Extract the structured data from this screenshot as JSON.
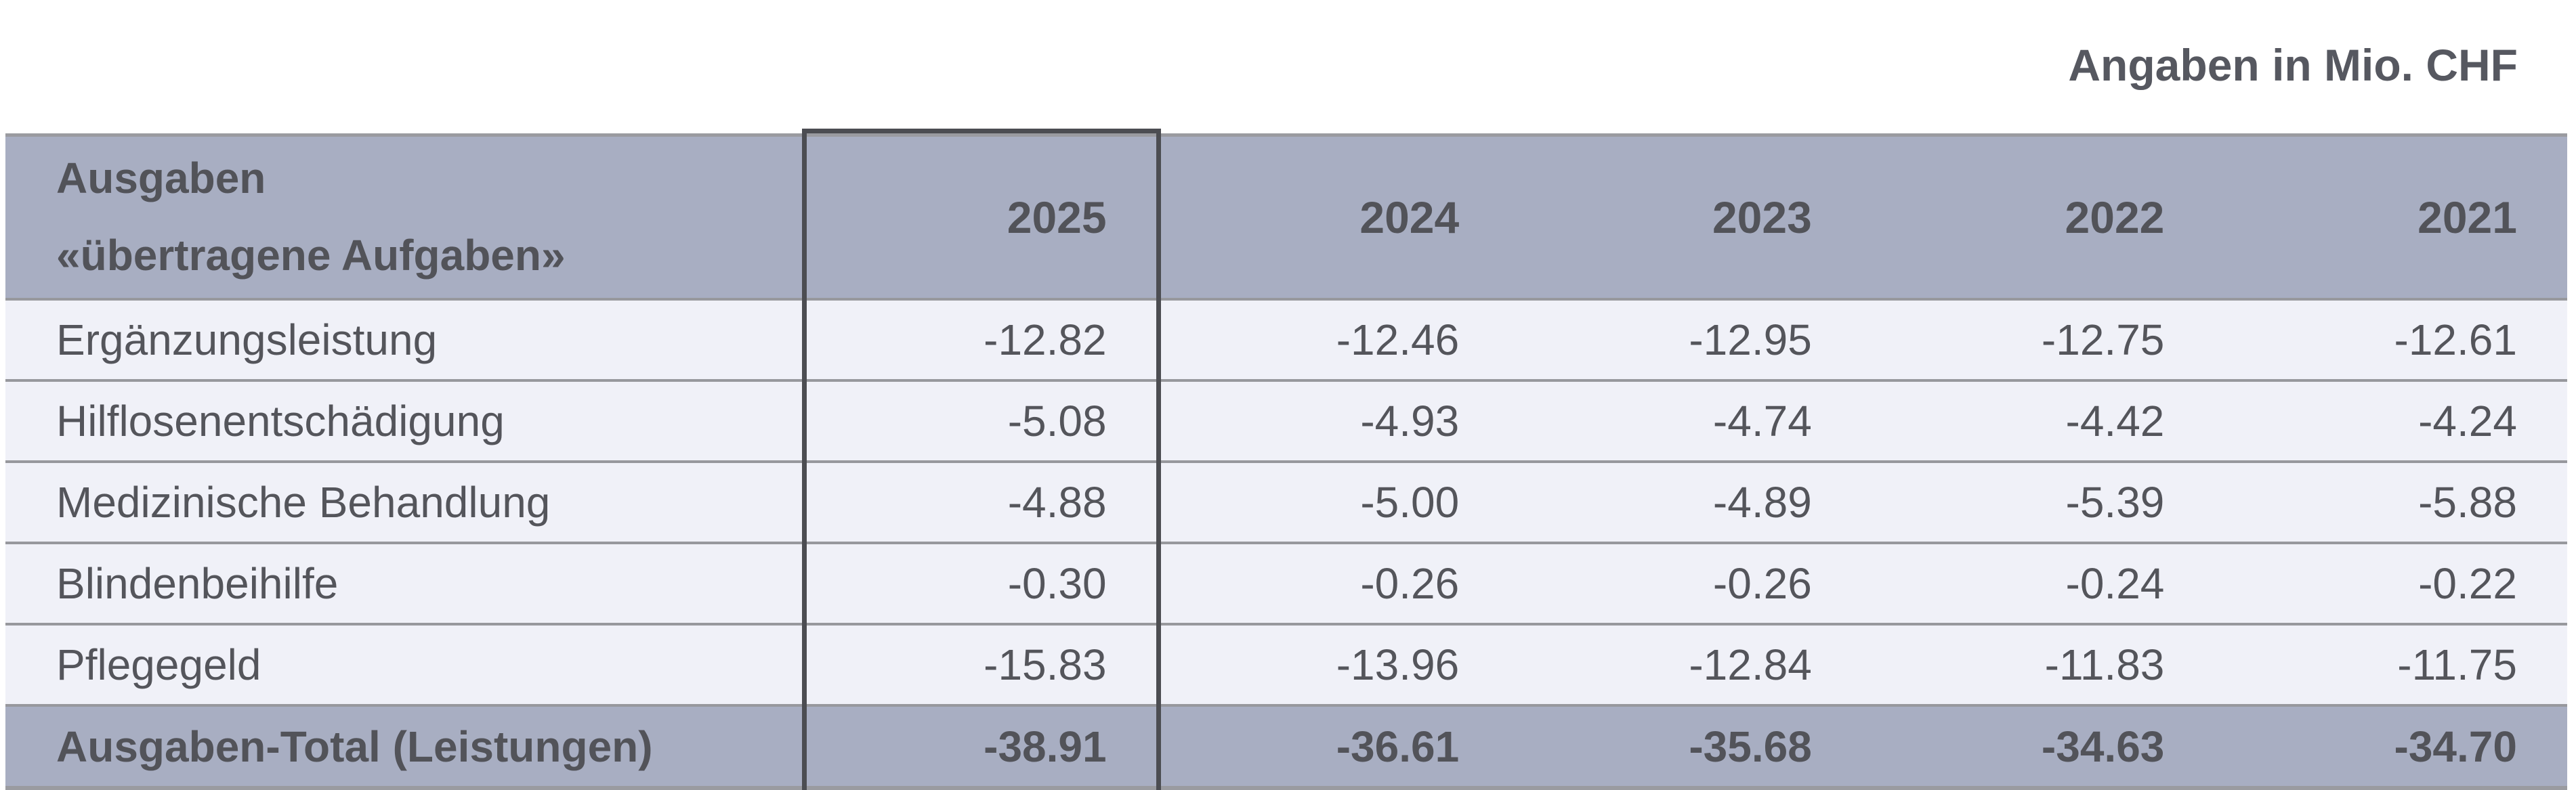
{
  "note": "Angaben in Mio. CHF",
  "table": {
    "header": {
      "label_line1": "Ausgaben",
      "label_line2": "«übertragene Aufgaben»",
      "years": [
        "2025",
        "2024",
        "2023",
        "2022",
        "2021"
      ]
    },
    "rows": [
      {
        "label": "Ergänzungsleistung",
        "values": [
          "-12.82",
          "-12.46",
          "-12.95",
          "-12.75",
          "-12.61"
        ]
      },
      {
        "label": "Hilflosenentschädigung",
        "values": [
          "-5.08",
          "-4.93",
          "-4.74",
          "-4.42",
          "-4.24"
        ]
      },
      {
        "label": "Medizinische Behandlung",
        "values": [
          "-4.88",
          "-5.00",
          "-4.89",
          "-5.39",
          "-5.88"
        ]
      },
      {
        "label": "Blindenbeihilfe",
        "values": [
          "-0.30",
          "-0.26",
          "-0.26",
          "-0.24",
          "-0.22"
        ]
      },
      {
        "label": "Pflegegeld",
        "values": [
          "-15.83",
          "-13.96",
          "-12.84",
          "-11.83",
          "-11.75"
        ]
      }
    ],
    "total": {
      "label": "Ausgaben-Total (Leistungen)",
      "values": [
        "-38.91",
        "-36.61",
        "-35.68",
        "-34.63",
        "-34.70"
      ]
    },
    "highlighted_year": "2025"
  },
  "colors": {
    "header_bg": "#a8aec2",
    "row_bg": "#f0f1f8",
    "grid_line": "#97989d",
    "highlight_border": "#4c4d52",
    "text": "#54555b"
  }
}
